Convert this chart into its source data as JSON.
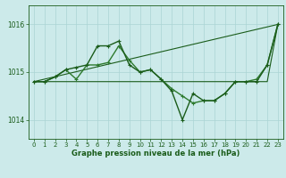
{
  "bg_color": "#cceaea",
  "grid_color": "#aad4d4",
  "line_dark": "#1a5c1a",
  "line_mid": "#2d7a2d",
  "xlabel": "Graphe pression niveau de la mer (hPa)",
  "xlim": [
    -0.5,
    23.5
  ],
  "ylim": [
    1013.6,
    1016.4
  ],
  "yticks": [
    1014,
    1015,
    1016
  ],
  "xticks": [
    0,
    1,
    2,
    3,
    4,
    5,
    6,
    7,
    8,
    9,
    10,
    11,
    12,
    13,
    14,
    15,
    16,
    17,
    18,
    19,
    20,
    21,
    22,
    23
  ],
  "line1_x": [
    0,
    1,
    2,
    3,
    4,
    5,
    6,
    7,
    8,
    9,
    10,
    11,
    12,
    13,
    14,
    15,
    16,
    17,
    18,
    19,
    20,
    21,
    22,
    23
  ],
  "line1_y": [
    1014.8,
    1014.8,
    1014.8,
    1014.8,
    1014.8,
    1014.8,
    1014.8,
    1014.8,
    1014.8,
    1014.8,
    1014.8,
    1014.8,
    1014.8,
    1014.8,
    1014.8,
    1014.8,
    1014.8,
    1014.8,
    1014.8,
    1014.8,
    1014.8,
    1014.8,
    1014.8,
    1016.0
  ],
  "line2_x": [
    0,
    23
  ],
  "line2_y": [
    1014.8,
    1016.0
  ],
  "line3_x": [
    0,
    1,
    2,
    3,
    4,
    5,
    6,
    7,
    8,
    9,
    10,
    11,
    12,
    13,
    14,
    15,
    16,
    17,
    18,
    19,
    20,
    21,
    22,
    23
  ],
  "line3_y": [
    1014.8,
    1014.8,
    1014.9,
    1015.05,
    1014.85,
    1015.15,
    1015.15,
    1015.2,
    1015.55,
    1015.25,
    1015.0,
    1015.05,
    1014.85,
    1014.65,
    1014.5,
    1014.35,
    1014.4,
    1014.4,
    1014.55,
    1014.8,
    1014.8,
    1014.85,
    1015.15,
    1016.0
  ],
  "line4_x": [
    0,
    1,
    2,
    3,
    4,
    5,
    6,
    7,
    8,
    9,
    10,
    11,
    12,
    13,
    14,
    15,
    16,
    17,
    18,
    19,
    20,
    21,
    22,
    23
  ],
  "line4_y": [
    1014.8,
    1014.8,
    1014.9,
    1015.05,
    1015.1,
    1015.15,
    1015.55,
    1015.55,
    1015.65,
    1015.15,
    1015.0,
    1015.05,
    1014.85,
    1014.6,
    1014.0,
    1014.55,
    1014.4,
    1014.4,
    1014.55,
    1014.8,
    1014.8,
    1014.8,
    1015.15,
    1016.0
  ]
}
